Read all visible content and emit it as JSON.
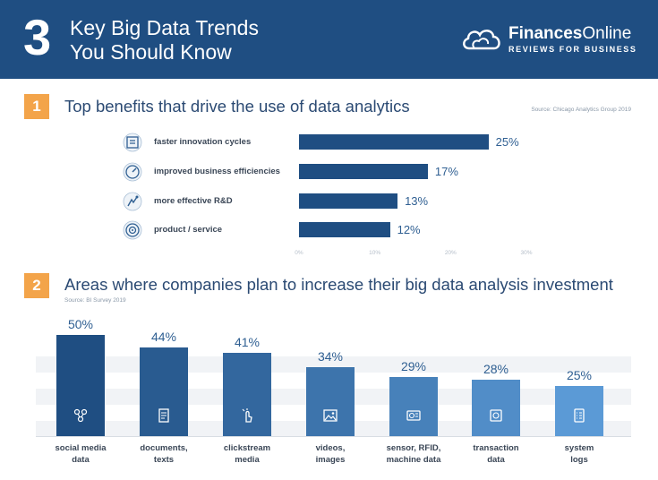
{
  "header": {
    "number": "3",
    "title_line1": "Key Big Data Trends",
    "title_line2": "You Should Know",
    "brand_bold": "Finances",
    "brand_light": "Online",
    "brand_tagline": "REVIEWS FOR BUSINESS",
    "bg_color": "#1f4e82"
  },
  "section1": {
    "number": "1",
    "title": "Top benefits that drive the use of data analytics",
    "source": "Source: Chicago Analytics Group 2019"
  },
  "section2": {
    "number": "2",
    "title": "Areas where companies plan to increase their big data analysis investment",
    "source": "Source: BI Survey 2019"
  },
  "colors": {
    "accent_orange": "#f3a44a",
    "bar_dark": "#1f4e82",
    "bar_light": "#5b9ad6",
    "value_text": "#2f5f92"
  },
  "chart_data": [
    {
      "type": "bar",
      "orientation": "horizontal",
      "title": "Top benefits that drive the use of data analytics",
      "categories": [
        "faster innovation cycles",
        "improved business efficiencies",
        "more effective R&D",
        "product / service"
      ],
      "values": [
        25,
        17,
        13,
        12
      ],
      "value_labels": [
        "25%",
        "17%",
        "13%",
        "12%"
      ],
      "icons": [
        "cycle-icon",
        "gauge-icon",
        "research-icon",
        "target-icon"
      ],
      "xlim": [
        0,
        30
      ],
      "ticks": [
        "0%",
        "10%",
        "20%",
        "30%"
      ],
      "grid": false
    },
    {
      "type": "bar",
      "orientation": "vertical",
      "title": "Areas where companies plan to increase their big data analysis investment",
      "categories": [
        [
          "social media",
          "data"
        ],
        [
          "documents,",
          "texts"
        ],
        [
          "clickstream",
          "media"
        ],
        [
          "videos,",
          "images"
        ],
        [
          "sensor, RFID,",
          "machine data"
        ],
        [
          "transaction",
          "data"
        ],
        [
          "system",
          "logs"
        ]
      ],
      "values": [
        50,
        44,
        41,
        34,
        29,
        28,
        25
      ],
      "value_labels": [
        "50%",
        "44%",
        "41%",
        "34%",
        "29%",
        "28%",
        "25%"
      ],
      "icons": [
        "social-media-icon",
        "document-icon",
        "click-icon",
        "image-icon",
        "sensor-icon",
        "money-icon",
        "log-icon"
      ],
      "ylim": [
        0,
        50
      ],
      "grid": false
    }
  ]
}
